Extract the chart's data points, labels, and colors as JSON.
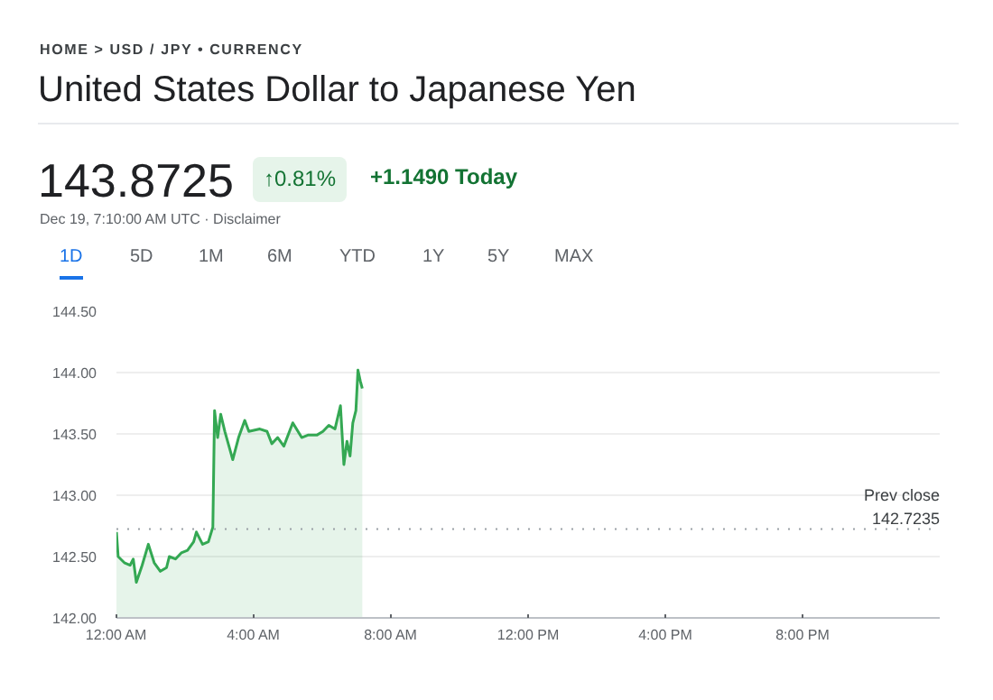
{
  "chart_data": {
    "type": "area",
    "subtitle": "HOME > USD / JPY • CURRENCY",
    "title": "United States Dollar to Japanese Yen",
    "annotations": [
      "143.8725",
      "↑0.81%",
      "+1.1490 Today",
      "Dec 19, 7:10:00 AM UTC · Disclaimer",
      "1D",
      "5D",
      "1M",
      "6M",
      "YTD",
      "1Y",
      "5Y",
      "MAX"
    ],
    "x": [
      0,
      0.05,
      0.23,
      0.4,
      0.49,
      0.58,
      0.75,
      0.93,
      1.1,
      1.28,
      1.46,
      1.54,
      1.72,
      1.89,
      2.07,
      2.25,
      2.33,
      2.51,
      2.68,
      2.81,
      2.86,
      2.95,
      3.04,
      3.16,
      3.39,
      3.56,
      3.74,
      3.86,
      4.18,
      4.39,
      4.53,
      4.7,
      4.88,
      5.14,
      5.4,
      5.58,
      5.84,
      6.02,
      6.19,
      6.37,
      6.53,
      6.63,
      6.72,
      6.81,
      6.89,
      6.98,
      7.04,
      7.11,
      7.1667
    ],
    "series": [
      {
        "color": "#34a853",
        "values": [
          142.7,
          142.5,
          142.45,
          142.43,
          142.48,
          142.29,
          142.43,
          142.6,
          142.45,
          142.38,
          142.41,
          142.5,
          142.48,
          142.53,
          142.55,
          142.62,
          142.7,
          142.6,
          142.62,
          142.74,
          143.69,
          143.47,
          143.66,
          143.52,
          143.29,
          143.47,
          143.61,
          143.52,
          143.54,
          143.52,
          143.42,
          143.47,
          143.4,
          143.59,
          143.47,
          143.49,
          143.49,
          143.52,
          143.57,
          143.54,
          143.73,
          143.25,
          143.44,
          143.32,
          143.59,
          143.69,
          144.02,
          143.93,
          143.87
        ]
      }
    ],
    "xlim": [
      0,
      24
    ],
    "xticks": [
      {
        "value": 0,
        "label": "12:00 AM"
      },
      {
        "value": 4,
        "label": "4:00 AM"
      },
      {
        "value": 8,
        "label": "8:00 AM"
      },
      {
        "value": 12,
        "label": "12:00 PM"
      },
      {
        "value": 16,
        "label": "4:00 PM"
      },
      {
        "value": 20,
        "label": "8:00 PM"
      }
    ],
    "ylim": [
      142,
      144.5
    ],
    "yticks": [
      {
        "value": 142,
        "label": "142.00"
      },
      {
        "value": 142.5,
        "label": "142.50"
      },
      {
        "value": 143,
        "label": "143.00"
      },
      {
        "value": 143.5,
        "label": "143.50"
      },
      {
        "value": 144,
        "label": "144.00"
      },
      {
        "value": 144.5,
        "label": "144.50"
      }
    ],
    "ref_lines": [
      {
        "axis": "y",
        "value": 142.7235,
        "label": "Prev close\n142.7235",
        "color": "#9aa0a6",
        "line_style": "dotted"
      }
    ],
    "grid": "y"
  }
}
